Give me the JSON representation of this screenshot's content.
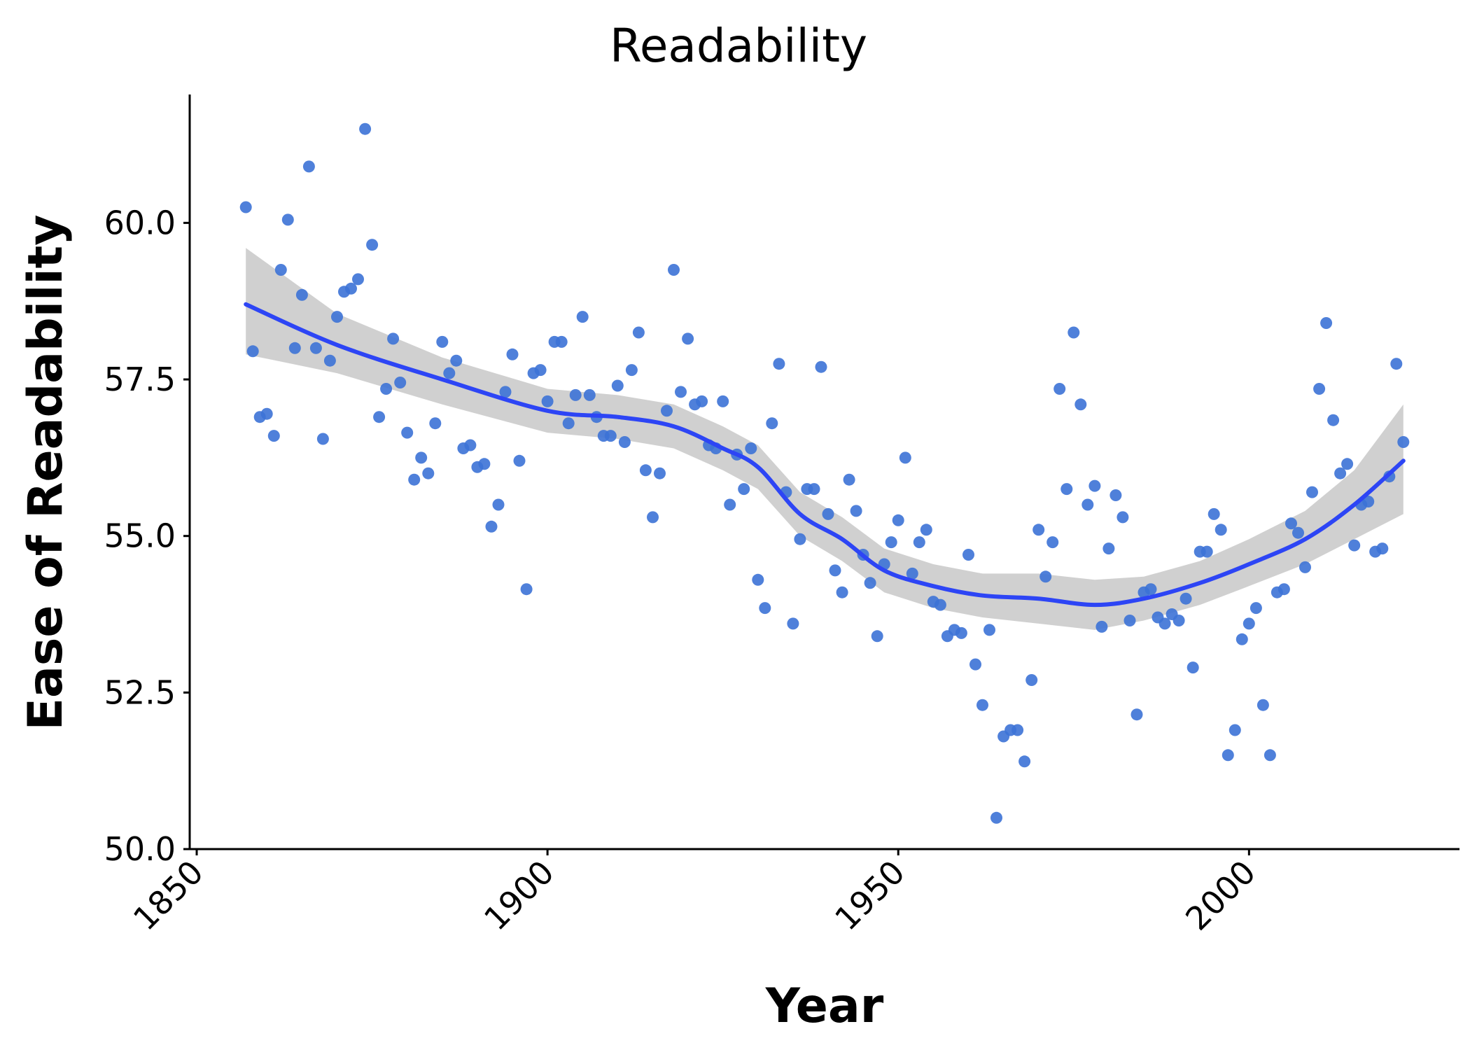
{
  "chart_data": {
    "type": "scatter",
    "title": "Readability",
    "xlabel": "Year",
    "ylabel": "Ease of Readability",
    "xlim": [
      1849,
      2030
    ],
    "ylim": [
      50,
      62.05
    ],
    "x_ticks": [
      "1850",
      "1900",
      "1950",
      "2000"
    ],
    "y_ticks": [
      "50.0",
      "52.5",
      "55.0",
      "57.5",
      "60.0"
    ],
    "grid": false,
    "legend": "none",
    "point_color": "#3C72D6",
    "smooth_color": "#2D45F5",
    "ribbon_color": "#C8C8C8",
    "points": [
      [
        1857,
        60.25
      ],
      [
        1858,
        57.95
      ],
      [
        1859,
        56.9
      ],
      [
        1860,
        56.95
      ],
      [
        1861,
        56.6
      ],
      [
        1862,
        59.25
      ],
      [
        1863,
        60.05
      ],
      [
        1864,
        58.0
      ],
      [
        1865,
        58.85
      ],
      [
        1866,
        60.9
      ],
      [
        1867,
        58.0
      ],
      [
        1868,
        56.55
      ],
      [
        1869,
        57.8
      ],
      [
        1870,
        58.5
      ],
      [
        1871,
        58.9
      ],
      [
        1872,
        58.95
      ],
      [
        1873,
        59.1
      ],
      [
        1874,
        61.5
      ],
      [
        1875,
        59.65
      ],
      [
        1876,
        56.9
      ],
      [
        1877,
        57.35
      ],
      [
        1878,
        58.15
      ],
      [
        1879,
        57.45
      ],
      [
        1880,
        56.65
      ],
      [
        1881,
        55.9
      ],
      [
        1882,
        56.25
      ],
      [
        1883,
        56.0
      ],
      [
        1884,
        56.8
      ],
      [
        1885,
        58.1
      ],
      [
        1886,
        57.6
      ],
      [
        1887,
        57.8
      ],
      [
        1888,
        56.4
      ],
      [
        1889,
        56.45
      ],
      [
        1890,
        56.1
      ],
      [
        1891,
        56.15
      ],
      [
        1892,
        55.15
      ],
      [
        1893,
        55.5
      ],
      [
        1894,
        57.3
      ],
      [
        1895,
        57.9
      ],
      [
        1896,
        56.2
      ],
      [
        1897,
        54.15
      ],
      [
        1898,
        57.6
      ],
      [
        1899,
        57.65
      ],
      [
        1900,
        57.15
      ],
      [
        1901,
        58.1
      ],
      [
        1902,
        58.1
      ],
      [
        1903,
        56.8
      ],
      [
        1904,
        57.25
      ],
      [
        1905,
        58.5
      ],
      [
        1906,
        57.25
      ],
      [
        1907,
        56.9
      ],
      [
        1908,
        56.6
      ],
      [
        1909,
        56.6
      ],
      [
        1910,
        57.4
      ],
      [
        1911,
        56.5
      ],
      [
        1912,
        57.65
      ],
      [
        1913,
        58.25
      ],
      [
        1914,
        56.05
      ],
      [
        1915,
        55.3
      ],
      [
        1916,
        56.0
      ],
      [
        1917,
        57.0
      ],
      [
        1918,
        59.25
      ],
      [
        1919,
        57.3
      ],
      [
        1920,
        58.15
      ],
      [
        1921,
        57.1
      ],
      [
        1922,
        57.15
      ],
      [
        1923,
        56.45
      ],
      [
        1924,
        56.4
      ],
      [
        1925,
        57.15
      ],
      [
        1926,
        55.5
      ],
      [
        1927,
        56.3
      ],
      [
        1928,
        55.75
      ],
      [
        1929,
        56.4
      ],
      [
        1930,
        54.3
      ],
      [
        1931,
        53.85
      ],
      [
        1932,
        56.8
      ],
      [
        1933,
        57.75
      ],
      [
        1934,
        55.7
      ],
      [
        1935,
        53.6
      ],
      [
        1936,
        54.95
      ],
      [
        1937,
        55.75
      ],
      [
        1938,
        55.75
      ],
      [
        1939,
        57.7
      ],
      [
        1940,
        55.35
      ],
      [
        1941,
        54.45
      ],
      [
        1942,
        54.1
      ],
      [
        1943,
        55.9
      ],
      [
        1944,
        55.4
      ],
      [
        1945,
        54.7
      ],
      [
        1946,
        54.25
      ],
      [
        1947,
        53.4
      ],
      [
        1948,
        54.55
      ],
      [
        1949,
        54.9
      ],
      [
        1950,
        55.25
      ],
      [
        1951,
        56.25
      ],
      [
        1952,
        54.4
      ],
      [
        1953,
        54.9
      ],
      [
        1954,
        55.1
      ],
      [
        1955,
        53.95
      ],
      [
        1956,
        53.9
      ],
      [
        1957,
        53.4
      ],
      [
        1958,
        53.5
      ],
      [
        1959,
        53.45
      ],
      [
        1960,
        54.7
      ],
      [
        1961,
        52.95
      ],
      [
        1962,
        52.3
      ],
      [
        1963,
        53.5
      ],
      [
        1964,
        50.5
      ],
      [
        1965,
        51.8
      ],
      [
        1966,
        51.9
      ],
      [
        1967,
        51.9
      ],
      [
        1968,
        51.4
      ],
      [
        1969,
        52.7
      ],
      [
        1970,
        55.1
      ],
      [
        1971,
        54.35
      ],
      [
        1972,
        54.9
      ],
      [
        1973,
        57.35
      ],
      [
        1974,
        55.75
      ],
      [
        1975,
        58.25
      ],
      [
        1976,
        57.1
      ],
      [
        1977,
        55.5
      ],
      [
        1978,
        55.8
      ],
      [
        1979,
        53.55
      ],
      [
        1980,
        54.8
      ],
      [
        1981,
        55.65
      ],
      [
        1982,
        55.3
      ],
      [
        1983,
        53.65
      ],
      [
        1984,
        52.15
      ],
      [
        1985,
        54.1
      ],
      [
        1986,
        54.15
      ],
      [
        1987,
        53.7
      ],
      [
        1988,
        53.6
      ],
      [
        1989,
        53.75
      ],
      [
        1990,
        53.65
      ],
      [
        1991,
        54.0
      ],
      [
        1992,
        52.9
      ],
      [
        1993,
        54.75
      ],
      [
        1994,
        54.75
      ],
      [
        1995,
        55.35
      ],
      [
        1996,
        55.1
      ],
      [
        1997,
        51.5
      ],
      [
        1998,
        51.9
      ],
      [
        1999,
        53.35
      ],
      [
        2000,
        53.6
      ],
      [
        2001,
        53.85
      ],
      [
        2002,
        52.3
      ],
      [
        2003,
        51.5
      ],
      [
        2004,
        54.1
      ],
      [
        2005,
        54.15
      ],
      [
        2006,
        55.2
      ],
      [
        2007,
        55.05
      ],
      [
        2008,
        54.5
      ],
      [
        2009,
        55.7
      ],
      [
        2010,
        57.35
      ],
      [
        2011,
        58.4
      ],
      [
        2012,
        56.85
      ],
      [
        2013,
        56.0
      ],
      [
        2014,
        56.15
      ],
      [
        2015,
        54.85
      ],
      [
        2016,
        55.5
      ],
      [
        2017,
        55.55
      ],
      [
        2018,
        54.75
      ],
      [
        2019,
        54.8
      ],
      [
        2020,
        55.95
      ],
      [
        2021,
        57.75
      ],
      [
        2022,
        56.5
      ]
    ],
    "smooth": {
      "x": [
        1857,
        1870,
        1885,
        1900,
        1910,
        1918,
        1925,
        1930,
        1936,
        1942,
        1948,
        1955,
        1962,
        1970,
        1978,
        1985,
        1993,
        2000,
        2008,
        2015,
        2022
      ],
      "y": [
        58.7,
        58.05,
        57.5,
        57.0,
        56.9,
        56.75,
        56.4,
        56.1,
        55.35,
        54.95,
        54.45,
        54.2,
        54.05,
        54.0,
        53.9,
        54.0,
        54.25,
        54.55,
        54.95,
        55.5,
        56.2
      ],
      "lower": [
        57.9,
        57.6,
        57.1,
        56.65,
        56.55,
        56.4,
        56.05,
        55.75,
        55.0,
        54.6,
        54.1,
        53.85,
        53.7,
        53.6,
        53.5,
        53.65,
        53.9,
        54.2,
        54.55,
        54.95,
        55.35
      ],
      "upper": [
        59.6,
        58.55,
        57.85,
        57.35,
        57.25,
        57.1,
        56.75,
        56.45,
        55.7,
        55.3,
        54.8,
        54.55,
        54.4,
        54.4,
        54.3,
        54.35,
        54.6,
        54.95,
        55.4,
        56.05,
        57.1
      ]
    }
  }
}
